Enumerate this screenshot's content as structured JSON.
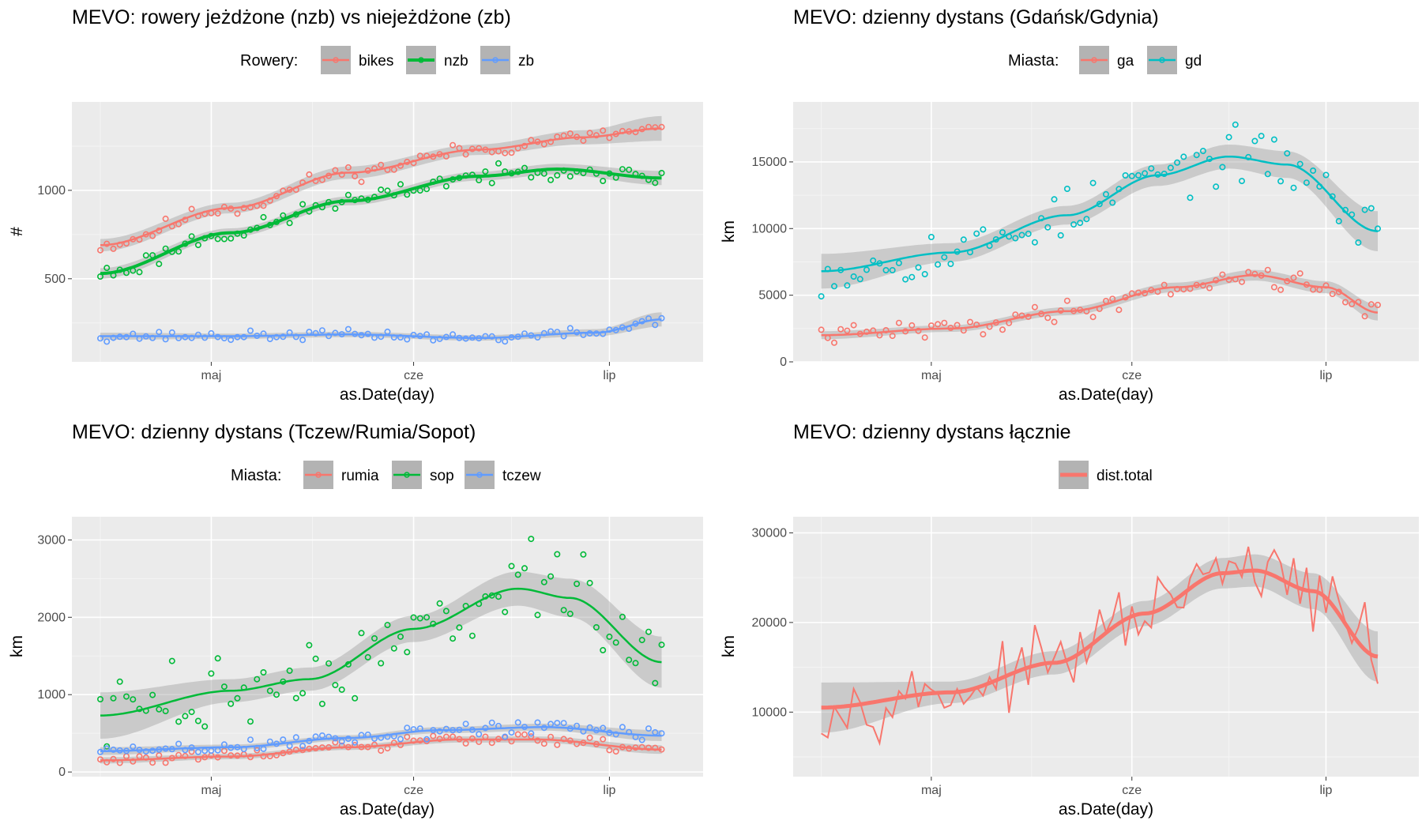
{
  "colors": {
    "panel_bg": "#EBEBEB",
    "grid_major": "#FFFFFF",
    "grid_minor": "#F4F4F4",
    "ribbon": "#999999",
    "red": "#F8766D",
    "green": "#00BA38",
    "blue": "#619CFF",
    "teal": "#00BFC4"
  },
  "chart_data": [
    {
      "id": "p1",
      "type": "scatter",
      "title": "MEVO: rowery jeżdżone (nzb) vs niejeżdżone (zb)",
      "legend_title": "Rowery:",
      "xlabel": "as.Date(day)",
      "ylabel": "#",
      "x_range": [
        "2019-04-14",
        "2019-07-11"
      ],
      "x_ticks": [
        {
          "label": "maj",
          "date": "2019-05-01"
        },
        {
          "label": "cze",
          "date": "2019-06-01"
        },
        {
          "label": "lip",
          "date": "2019-07-01"
        }
      ],
      "ylim": [
        30,
        1500
      ],
      "y_ticks": [
        500,
        1000
      ],
      "series": [
        {
          "name": "bikes",
          "color": "#F8766D",
          "smooth_width": 2.5,
          "trend": [
            [
              0,
              690
            ],
            [
              20,
              900
            ],
            [
              38,
              1100
            ],
            [
              58,
              1230
            ],
            [
              74,
              1300
            ],
            [
              86,
              1350
            ]
          ],
          "band": [
            35,
            30,
            35,
            30,
            40,
            70
          ],
          "noise": [
            50,
            40
          ],
          "seed": 11,
          "show_points": true
        },
        {
          "name": "nzb",
          "color": "#00BA38",
          "smooth_width": 4,
          "trend": [
            [
              0,
              530
            ],
            [
              20,
              760
            ],
            [
              38,
              940
            ],
            [
              58,
              1080
            ],
            [
              70,
              1120
            ],
            [
              86,
              1070
            ]
          ],
          "band": [
            30,
            25,
            25,
            25,
            30,
            40
          ],
          "noise": [
            60,
            50
          ],
          "seed": 23,
          "show_points": true
        },
        {
          "name": "zb",
          "color": "#619CFF",
          "smooth_width": 2.5,
          "trend": [
            [
              0,
              175
            ],
            [
              20,
              175
            ],
            [
              38,
              185
            ],
            [
              58,
              165
            ],
            [
              76,
              195
            ],
            [
              86,
              270
            ]
          ],
          "band": [
            20,
            15,
            15,
            15,
            20,
            40
          ],
          "noise": [
            30,
            30
          ],
          "seed": 37,
          "show_points": true
        }
      ]
    },
    {
      "id": "p2",
      "type": "scatter",
      "title": "MEVO: dzienny dystans (Gdańsk/Gdynia)",
      "legend_title": "Miasta:",
      "xlabel": "as.Date(day)",
      "ylabel": "km",
      "x_range": [
        "2019-04-14",
        "2019-07-11"
      ],
      "x_ticks": [
        {
          "label": "maj",
          "date": "2019-05-01"
        },
        {
          "label": "cze",
          "date": "2019-06-01"
        },
        {
          "label": "lip",
          "date": "2019-07-01"
        }
      ],
      "ylim": [
        0,
        19500
      ],
      "y_ticks": [
        0,
        5000,
        10000,
        15000
      ],
      "series": [
        {
          "name": "ga",
          "color": "#F8766D",
          "smooth_width": 2.5,
          "trend": [
            [
              0,
              2000
            ],
            [
              20,
              2500
            ],
            [
              38,
              3800
            ],
            [
              55,
              5600
            ],
            [
              67,
              6500
            ],
            [
              78,
              5600
            ],
            [
              86,
              3700
            ]
          ],
          "band": [
            300,
            250,
            300,
            350,
            400,
            450,
            600
          ],
          "noise": [
            700,
            900
          ],
          "seed": 41,
          "show_points": true
        },
        {
          "name": "gd",
          "color": "#00BFC4",
          "smooth_width": 2.5,
          "trend": [
            [
              0,
              6800
            ],
            [
              20,
              8200
            ],
            [
              38,
              11000
            ],
            [
              52,
              14000
            ],
            [
              63,
              15400
            ],
            [
              72,
              14800
            ],
            [
              86,
              9800
            ]
          ],
          "band": [
            1300,
            700,
            700,
            800,
            900,
            1000,
            1500
          ],
          "noise": [
            2000,
            2200
          ],
          "seed": 53,
          "show_points": true
        }
      ]
    },
    {
      "id": "p3",
      "type": "scatter",
      "title": "MEVO: dzienny dystans (Tczew/Rumia/Sopot)",
      "legend_title": "Miasta:",
      "xlabel": "as.Date(day)",
      "ylabel": "km",
      "x_range": [
        "2019-04-14",
        "2019-07-11"
      ],
      "x_ticks": [
        {
          "label": "maj",
          "date": "2019-05-01"
        },
        {
          "label": "cze",
          "date": "2019-06-01"
        },
        {
          "label": "lip",
          "date": "2019-07-01"
        }
      ],
      "ylim": [
        -60,
        3300
      ],
      "y_ticks": [
        0,
        1000,
        2000,
        3000
      ],
      "series": [
        {
          "name": "rumia",
          "color": "#F8766D",
          "smooth_width": 2.5,
          "trend": [
            [
              0,
              150
            ],
            [
              20,
              200
            ],
            [
              38,
              320
            ],
            [
              55,
              420
            ],
            [
              67,
              420
            ],
            [
              86,
              290
            ]
          ],
          "band": [
            40,
            35,
            35,
            40,
            40,
            55
          ],
          "noise": [
            90,
            80
          ],
          "seed": 61,
          "show_points": true
        },
        {
          "name": "sop",
          "color": "#00BA38",
          "smooth_width": 2.5,
          "trend": [
            [
              0,
              730
            ],
            [
              20,
              1050
            ],
            [
              32,
              1200
            ],
            [
              48,
              1850
            ],
            [
              64,
              2370
            ],
            [
              72,
              2250
            ],
            [
              86,
              1420
            ]
          ],
          "band": [
            300,
            150,
            150,
            170,
            220,
            250,
            330
          ],
          "noise": [
            500,
            600
          ],
          "seed": 73,
          "show_points": true
        },
        {
          "name": "tczew",
          "color": "#619CFF",
          "smooth_width": 2.5,
          "trend": [
            [
              0,
              270
            ],
            [
              20,
              320
            ],
            [
              38,
              440
            ],
            [
              52,
              540
            ],
            [
              68,
              580
            ],
            [
              86,
              470
            ]
          ],
          "band": [
            50,
            35,
            35,
            40,
            45,
            70
          ],
          "noise": [
            110,
            120
          ],
          "seed": 89,
          "show_points": true
        }
      ]
    },
    {
      "id": "p4",
      "type": "line",
      "title": "MEVO: dzienny dystans łącznie",
      "legend_title": "",
      "xlabel": "as.Date(day)",
      "ylabel": "km",
      "x_range": [
        "2019-04-14",
        "2019-07-11"
      ],
      "x_ticks": [
        {
          "label": "maj",
          "date": "2019-05-01"
        },
        {
          "label": "cze",
          "date": "2019-06-01"
        },
        {
          "label": "lip",
          "date": "2019-07-01"
        }
      ],
      "ylim": [
        2800,
        31800
      ],
      "y_ticks": [
        10000,
        20000,
        30000
      ],
      "series": [
        {
          "name": "dist.total",
          "color": "#F8766D",
          "smooth_width": 5,
          "trend": [
            [
              0,
              10500
            ],
            [
              20,
              12200
            ],
            [
              36,
              15500
            ],
            [
              50,
              21000
            ],
            [
              62,
              25500
            ],
            [
              67,
              25800
            ],
            [
              76,
              23500
            ],
            [
              86,
              16200
            ]
          ],
          "band": [
            2800,
            1200,
            1300,
            1400,
            1700,
            1800,
            2000,
            2800
          ],
          "noise": [
            3500,
            4200
          ],
          "seed": 97,
          "show_points": false,
          "show_line": true
        }
      ]
    }
  ]
}
